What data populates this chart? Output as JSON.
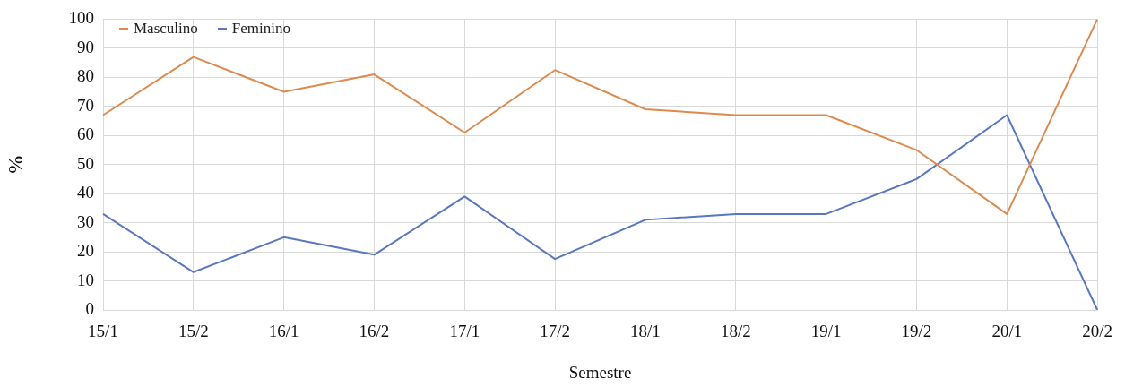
{
  "chart_data": {
    "type": "line",
    "xlabel": "Semestre",
    "ylabel": "%",
    "categories": [
      "15/1",
      "15/2",
      "16/1",
      "16/2",
      "17/1",
      "17/2",
      "18/1",
      "18/2",
      "19/1",
      "19/2",
      "20/1",
      "20/2"
    ],
    "series": [
      {
        "name": "Masculino",
        "color": "#dd8a4f",
        "values": [
          67,
          87,
          75,
          81,
          61,
          82.5,
          69,
          67,
          67,
          55,
          33,
          100
        ]
      },
      {
        "name": "Feminino",
        "color": "#5a78c0",
        "values": [
          33,
          13,
          25,
          19,
          39,
          17.5,
          31,
          33,
          33,
          45,
          67,
          0
        ]
      }
    ],
    "ylim": [
      0,
      100
    ],
    "yticks": [
      0,
      10,
      20,
      30,
      40,
      50,
      60,
      70,
      80,
      90,
      100
    ],
    "grid": true,
    "legend": "top left",
    "marker": "none",
    "line_style": "solid"
  }
}
